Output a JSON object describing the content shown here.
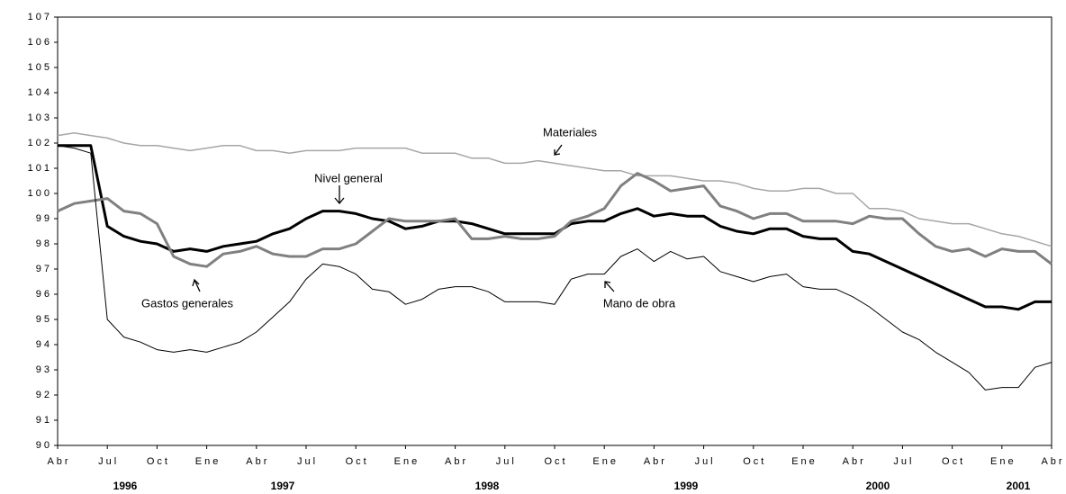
{
  "chart_data": {
    "type": "line",
    "categories": [
      "Abr",
      null,
      null,
      "Jul",
      null,
      null,
      "Oct",
      null,
      null,
      "Ene",
      null,
      null,
      "Abr",
      null,
      null,
      "Jul",
      null,
      null,
      "Oct",
      null,
      null,
      "Ene",
      null,
      null,
      "Abr",
      null,
      null,
      "Jul",
      null,
      null,
      "Oct",
      null,
      null,
      "Ene",
      null,
      null,
      "Abr",
      null,
      null,
      "Jul",
      null,
      null,
      "Oct",
      null,
      null,
      "Ene",
      null,
      null,
      "Abr",
      null,
      null,
      "Jul",
      null,
      null,
      "Oct",
      null,
      null,
      "Ene",
      null,
      null,
      "Abr"
    ],
    "year_labels": [
      "1996",
      "1997",
      "1998",
      "1999",
      "2000",
      "2001"
    ],
    "series": [
      {
        "name": "Materiales",
        "color": "#a6a6a6",
        "values": [
          102.3,
          102.4,
          102.3,
          102.2,
          102.0,
          101.9,
          101.9,
          101.8,
          101.7,
          101.8,
          101.9,
          101.9,
          101.7,
          101.7,
          101.6,
          101.7,
          101.7,
          101.7,
          101.8,
          101.8,
          101.8,
          101.8,
          101.6,
          101.6,
          101.6,
          101.4,
          101.4,
          101.2,
          101.2,
          101.3,
          101.2,
          101.1,
          101.0,
          100.9,
          100.9,
          100.7,
          100.7,
          100.7,
          100.6,
          100.5,
          100.5,
          100.4,
          100.2,
          100.1,
          100.1,
          100.2,
          100.2,
          100.0,
          100.0,
          99.4,
          99.4,
          99.3,
          99.0,
          98.9,
          98.8,
          98.8,
          98.6,
          98.4,
          98.3,
          98.1,
          97.9
        ]
      },
      {
        "name": "Nivel general",
        "color": "#000000",
        "values": [
          101.9,
          101.9,
          101.9,
          98.7,
          98.3,
          98.1,
          98.0,
          97.7,
          97.8,
          97.7,
          97.9,
          98.0,
          98.1,
          98.4,
          98.6,
          99.0,
          99.3,
          99.3,
          99.2,
          99.0,
          98.9,
          98.6,
          98.7,
          98.9,
          98.9,
          98.8,
          98.6,
          98.4,
          98.4,
          98.4,
          98.4,
          98.8,
          98.9,
          98.9,
          99.2,
          99.4,
          99.1,
          99.2,
          99.1,
          99.1,
          98.7,
          98.5,
          98.4,
          98.6,
          98.6,
          98.3,
          98.2,
          98.2,
          97.7,
          97.6,
          97.3,
          97.0,
          96.7,
          96.4,
          96.1,
          95.8,
          95.5,
          95.5,
          95.4,
          95.7,
          95.7
        ]
      },
      {
        "name": "Gastos generales",
        "color": "#808080",
        "values": [
          99.3,
          99.6,
          99.7,
          99.8,
          99.3,
          99.2,
          98.8,
          97.5,
          97.2,
          97.1,
          97.6,
          97.7,
          97.9,
          97.6,
          97.5,
          97.5,
          97.8,
          97.8,
          98.0,
          98.5,
          99.0,
          98.9,
          98.9,
          98.9,
          99.0,
          98.2,
          98.2,
          98.3,
          98.2,
          98.2,
          98.3,
          98.9,
          99.1,
          99.4,
          100.3,
          100.8,
          100.5,
          100.1,
          100.2,
          100.3,
          99.5,
          99.3,
          99.0,
          99.2,
          99.2,
          98.9,
          98.9,
          98.9,
          98.8,
          99.1,
          99.0,
          99.0,
          98.4,
          97.9,
          97.7,
          97.8,
          97.5,
          97.8,
          97.7,
          97.7,
          97.2
        ]
      },
      {
        "name": "Mano de obra",
        "color": "#000000",
        "values": [
          101.9,
          101.8,
          101.6,
          95.0,
          94.3,
          94.1,
          93.8,
          93.7,
          93.8,
          93.7,
          93.9,
          94.1,
          94.5,
          95.1,
          95.7,
          96.6,
          97.2,
          97.1,
          96.8,
          96.2,
          96.1,
          95.6,
          95.8,
          96.2,
          96.3,
          96.3,
          96.1,
          95.7,
          95.7,
          95.7,
          95.6,
          96.6,
          96.8,
          96.8,
          97.5,
          97.8,
          97.3,
          97.7,
          97.4,
          97.5,
          96.9,
          96.7,
          96.5,
          96.7,
          96.8,
          96.3,
          96.2,
          96.2,
          95.9,
          95.5,
          95.0,
          94.5,
          94.2,
          93.7,
          93.3,
          92.9,
          92.2,
          92.3,
          92.3,
          93.1,
          93.3
        ]
      }
    ],
    "ylim": [
      90,
      107
    ],
    "yticks": [
      90,
      91,
      92,
      93,
      94,
      95,
      96,
      97,
      98,
      99,
      100,
      101,
      102,
      103,
      104,
      105,
      106,
      107
    ],
    "grid": false
  }
}
